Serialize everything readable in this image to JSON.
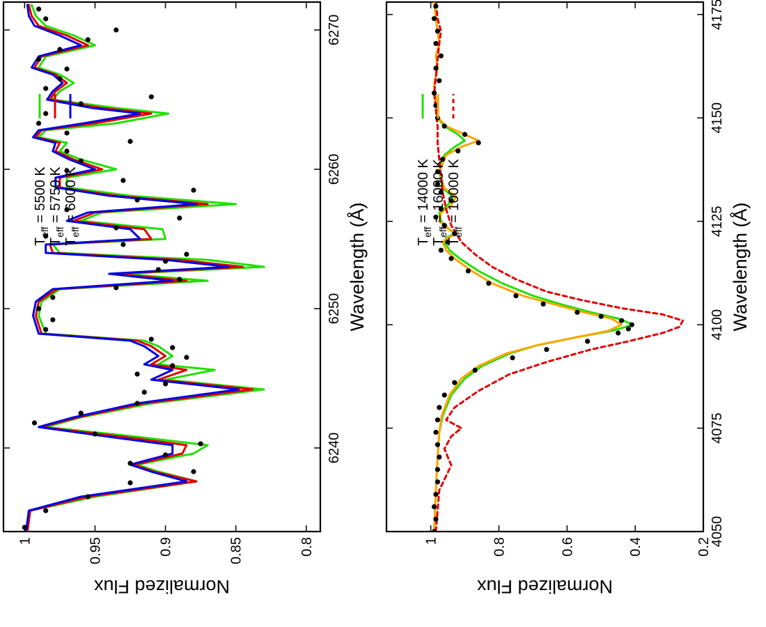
{
  "chart_data": [
    {
      "type": "line",
      "panel": "top",
      "xlabel": "Wavelength (Å)",
      "ylabel": "Normalized Flux",
      "xlim": [
        6234,
        6272
      ],
      "ylim": [
        0.79,
        1.015
      ],
      "xticks": [
        "6240",
        "6250",
        "6260",
        "6270"
      ],
      "yticks": [
        "1",
        "0.95",
        "0.9",
        "0.85",
        "0.8"
      ],
      "legend_position": "top-right",
      "observed": {
        "style": "black dots",
        "x": [
          6234.3,
          6235.5,
          6236.5,
          6237.5,
          6238.3,
          6238.9,
          6239.5,
          6240.3,
          6241.0,
          6241.8,
          6242.5,
          6243.2,
          6244.0,
          6244.6,
          6245.3,
          6245.9,
          6246.5,
          6247.2,
          6247.8,
          6248.5,
          6249.2,
          6250.0,
          6250.8,
          6251.5,
          6252.1,
          6252.8,
          6253.4,
          6253.9,
          6254.6,
          6255.2,
          6255.8,
          6256.5,
          6257.1,
          6257.8,
          6258.5,
          6259.2,
          6259.9,
          6260.6,
          6261.3,
          6262.0,
          6262.6,
          6263.3,
          6264.0,
          6264.7,
          6265.2,
          6265.8,
          6266.5,
          6267.2,
          6267.9,
          6268.6,
          6269.3,
          6270.0,
          6270.8,
          6271.5
        ],
        "y": [
          1.0,
          0.985,
          0.955,
          0.925,
          0.88,
          0.925,
          0.9,
          0.875,
          0.95,
          0.993,
          0.96,
          0.92,
          0.915,
          0.9,
          0.92,
          0.895,
          0.885,
          0.895,
          0.91,
          0.985,
          0.98,
          0.99,
          0.98,
          0.935,
          0.89,
          0.905,
          0.9,
          0.885,
          0.93,
          0.985,
          0.935,
          0.89,
          0.97,
          0.92,
          0.88,
          0.93,
          0.97,
          0.96,
          0.97,
          0.925,
          0.97,
          0.99,
          0.985,
          0.96,
          0.91,
          0.985,
          0.975,
          0.97,
          0.99,
          0.975,
          0.955,
          0.935,
          0.985,
          0.99
        ]
      },
      "series": [
        {
          "name": "5500 K",
          "color": "#22e000",
          "x": [
            6234.0,
            6235.5,
            6236.5,
            6237.6,
            6238.3,
            6238.8,
            6239.6,
            6240.2,
            6240.8,
            6241.5,
            6242.2,
            6243.2,
            6244.2,
            6244.9,
            6245.6,
            6246.0,
            6246.6,
            6247.3,
            6247.7,
            6248.2,
            6249.5,
            6250.5,
            6251.4,
            6252.0,
            6252.5,
            6253.0,
            6253.5,
            6254.0,
            6254.6,
            6255.0,
            6255.7,
            6256.3,
            6256.9,
            6257.5,
            6258.1,
            6258.7,
            6259.4,
            6260.0,
            6260.7,
            6261.3,
            6261.9,
            6262.3,
            6262.8,
            6263.3,
            6264.0,
            6264.4,
            6265.0,
            6265.6,
            6266.2,
            6266.8,
            6267.3,
            6268.1,
            6268.9,
            6269.6,
            6270.3,
            6271.0,
            6271.8
          ],
          "y": [
            0.998,
            0.996,
            0.95,
            0.878,
            0.905,
            0.92,
            0.88,
            0.87,
            0.92,
            0.985,
            0.96,
            0.91,
            0.83,
            0.9,
            0.865,
            0.905,
            0.895,
            0.905,
            0.915,
            0.985,
            0.99,
            0.988,
            0.975,
            0.87,
            0.93,
            0.83,
            0.87,
            0.975,
            0.98,
            0.9,
            0.902,
            0.96,
            0.945,
            0.85,
            0.925,
            0.97,
            0.97,
            0.935,
            0.96,
            0.975,
            0.97,
            0.99,
            0.985,
            0.935,
            0.898,
            0.935,
            0.98,
            0.975,
            0.965,
            0.975,
            0.99,
            0.985,
            0.95,
            0.965,
            0.985,
            0.992,
            0.995
          ]
        },
        {
          "name": "5750 K",
          "color": "#e00000",
          "x": [
            6234.0,
            6235.5,
            6236.5,
            6237.6,
            6238.3,
            6238.8,
            6239.6,
            6240.2,
            6240.8,
            6241.5,
            6242.2,
            6243.2,
            6244.2,
            6244.9,
            6245.6,
            6246.0,
            6246.6,
            6247.3,
            6247.7,
            6248.2,
            6249.5,
            6250.5,
            6251.4,
            6252.0,
            6252.5,
            6253.0,
            6253.5,
            6254.0,
            6254.6,
            6255.0,
            6255.7,
            6256.3,
            6256.9,
            6257.5,
            6258.1,
            6258.7,
            6259.4,
            6260.0,
            6260.7,
            6261.3,
            6261.9,
            6262.3,
            6262.8,
            6263.3,
            6264.0,
            6264.4,
            6265.0,
            6265.6,
            6266.2,
            6266.8,
            6267.3,
            6268.1,
            6268.9,
            6269.6,
            6270.3,
            6271.0,
            6271.8
          ],
          "y": [
            0.998,
            0.996,
            0.955,
            0.878,
            0.908,
            0.922,
            0.888,
            0.885,
            0.93,
            0.988,
            0.962,
            0.915,
            0.838,
            0.905,
            0.885,
            0.91,
            0.9,
            0.91,
            0.92,
            0.988,
            0.992,
            0.99,
            0.977,
            0.885,
            0.935,
            0.845,
            0.89,
            0.98,
            0.982,
            0.91,
            0.915,
            0.965,
            0.95,
            0.87,
            0.935,
            0.975,
            0.975,
            0.945,
            0.965,
            0.978,
            0.975,
            0.992,
            0.988,
            0.95,
            0.91,
            0.945,
            0.982,
            0.978,
            0.97,
            0.978,
            0.993,
            0.988,
            0.955,
            0.97,
            0.99,
            0.995,
            0.997
          ]
        },
        {
          "name": "6000 K",
          "color": "#0000e0",
          "x": [
            6234.0,
            6235.5,
            6236.5,
            6237.6,
            6238.3,
            6238.8,
            6239.6,
            6240.2,
            6240.8,
            6241.5,
            6242.2,
            6243.2,
            6244.2,
            6244.9,
            6245.6,
            6246.0,
            6246.6,
            6247.3,
            6247.7,
            6248.2,
            6249.5,
            6250.5,
            6251.4,
            6252.0,
            6252.5,
            6253.0,
            6253.5,
            6254.0,
            6254.6,
            6255.0,
            6255.7,
            6256.3,
            6256.9,
            6257.5,
            6258.1,
            6258.7,
            6259.4,
            6260.0,
            6260.7,
            6261.3,
            6261.9,
            6262.3,
            6262.8,
            6263.3,
            6264.0,
            6264.4,
            6265.0,
            6265.6,
            6266.2,
            6266.8,
            6267.3,
            6268.1,
            6268.9,
            6269.6,
            6270.3,
            6271.0,
            6271.8
          ],
          "y": [
            0.999,
            0.997,
            0.96,
            0.885,
            0.91,
            0.925,
            0.895,
            0.895,
            0.94,
            0.99,
            0.965,
            0.92,
            0.848,
            0.91,
            0.895,
            0.915,
            0.905,
            0.915,
            0.925,
            0.99,
            0.994,
            0.992,
            0.98,
            0.895,
            0.94,
            0.855,
            0.9,
            0.985,
            0.985,
            0.918,
            0.925,
            0.97,
            0.955,
            0.878,
            0.94,
            0.978,
            0.978,
            0.95,
            0.968,
            0.98,
            0.978,
            0.994,
            0.99,
            0.958,
            0.918,
            0.952,
            0.984,
            0.98,
            0.973,
            0.98,
            0.995,
            0.99,
            0.96,
            0.975,
            0.993,
            0.997,
            0.998
          ]
        }
      ]
    },
    {
      "type": "line",
      "panel": "bottom",
      "xlabel": "Wavelength (Å)",
      "ylabel": "Normalized Flux",
      "xlim": [
        4050,
        4178
      ],
      "ylim": [
        0.2,
        1.13
      ],
      "xticks": [
        "4050",
        "4075",
        "4100",
        "4125",
        "4150",
        "4175"
      ],
      "yticks": [
        "1",
        "0.8",
        "0.6",
        "0.4",
        "0.2"
      ],
      "legend_position": "top-right",
      "observed": {
        "style": "black dots",
        "x": [
          4050,
          4053,
          4056,
          4059,
          4062,
          4065,
          4068,
          4071,
          4074,
          4077,
          4080,
          4083,
          4086,
          4089,
          4092,
          4094,
          4096,
          4098,
          4099,
          4100,
          4101,
          4102,
          4103,
          4105,
          4107,
          4110,
          4113,
          4116,
          4118,
          4120,
          4122,
          4124,
          4126,
          4128,
          4130,
          4132,
          4134,
          4137,
          4140,
          4142,
          4144,
          4146,
          4148,
          4150,
          4153,
          4156,
          4159,
          4162,
          4165,
          4168,
          4171,
          4174,
          4177
        ],
        "y": [
          0.99,
          0.985,
          0.99,
          0.985,
          0.98,
          0.98,
          0.975,
          0.98,
          0.985,
          0.98,
          0.975,
          0.96,
          0.93,
          0.87,
          0.76,
          0.66,
          0.54,
          0.45,
          0.42,
          0.41,
          0.44,
          0.5,
          0.57,
          0.67,
          0.75,
          0.83,
          0.89,
          0.94,
          0.97,
          0.95,
          0.93,
          0.96,
          0.985,
          0.97,
          0.94,
          0.97,
          0.98,
          0.98,
          0.965,
          0.92,
          0.86,
          0.9,
          0.96,
          0.98,
          0.985,
          0.99,
          0.975,
          0.985,
          0.97,
          0.985,
          0.98,
          0.99,
          0.985
        ]
      },
      "series": [
        {
          "name": "14000 K",
          "color": "#22e000",
          "x": [
            4050,
            4060,
            4068,
            4074,
            4078,
            4083,
            4087,
            4090,
            4093,
            4095,
            4097,
            4098.5,
            4100,
            4101.5,
            4103,
            4105,
            4107,
            4110,
            4113,
            4116,
            4118,
            4120,
            4121,
            4122,
            4123,
            4125,
            4127,
            4129,
            4131,
            4133,
            4137,
            4141,
            4143,
            4144.5,
            4146,
            4148,
            4150,
            4154,
            4158,
            4162,
            4165,
            4168,
            4171,
            4174,
            4178
          ],
          "y": [
            0.99,
            0.985,
            0.98,
            0.975,
            0.965,
            0.94,
            0.9,
            0.85,
            0.77,
            0.69,
            0.57,
            0.47,
            0.405,
            0.45,
            0.53,
            0.62,
            0.7,
            0.79,
            0.86,
            0.915,
            0.945,
            0.96,
            0.955,
            0.93,
            0.945,
            0.97,
            0.975,
            0.95,
            0.935,
            0.965,
            0.975,
            0.96,
            0.93,
            0.9,
            0.92,
            0.96,
            0.98,
            0.985,
            0.99,
            0.98,
            0.985,
            0.975,
            0.98,
            0.985,
            0.99
          ]
        },
        {
          "name": "16000 K",
          "color": "#ffa500",
          "x": [
            4050,
            4060,
            4068,
            4074,
            4078,
            4083,
            4087,
            4090,
            4093,
            4095,
            4097,
            4098.5,
            4100,
            4101.5,
            4103,
            4105,
            4107,
            4110,
            4113,
            4116,
            4118,
            4120,
            4121,
            4122,
            4123,
            4125,
            4127,
            4129,
            4131,
            4133,
            4137,
            4141,
            4143,
            4144.5,
            4146,
            4148,
            4150,
            4154,
            4158,
            4162,
            4165,
            4168,
            4171,
            4174,
            4178
          ],
          "y": [
            0.99,
            0.985,
            0.98,
            0.975,
            0.968,
            0.945,
            0.91,
            0.86,
            0.78,
            0.69,
            0.57,
            0.48,
            0.44,
            0.47,
            0.55,
            0.64,
            0.73,
            0.82,
            0.88,
            0.93,
            0.955,
            0.965,
            0.95,
            0.925,
            0.945,
            0.975,
            0.97,
            0.94,
            0.925,
            0.96,
            0.975,
            0.955,
            0.91,
            0.86,
            0.9,
            0.955,
            0.978,
            0.985,
            0.99,
            0.98,
            0.985,
            0.975,
            0.98,
            0.985,
            0.99
          ]
        },
        {
          "name": "10000 K",
          "color": "#e00000",
          "dashed": true,
          "x": [
            4050,
            4060,
            4066,
            4070,
            4073,
            4075,
            4077,
            4080,
            4084,
            4088,
            4091,
            4094,
            4096,
            4098,
            4099.5,
            4101,
            4102.5,
            4104,
            4106,
            4108,
            4111,
            4114,
            4117,
            4120,
            4124,
            4128,
            4132,
            4136,
            4140,
            4144,
            4148,
            4152,
            4156,
            4160,
            4164,
            4168,
            4171,
            4174,
            4178
          ],
          "y": [
            0.985,
            0.975,
            0.94,
            0.96,
            0.94,
            0.91,
            0.955,
            0.93,
            0.86,
            0.77,
            0.66,
            0.53,
            0.42,
            0.32,
            0.27,
            0.26,
            0.32,
            0.44,
            0.56,
            0.66,
            0.75,
            0.82,
            0.87,
            0.91,
            0.94,
            0.955,
            0.965,
            0.97,
            0.975,
            0.98,
            0.98,
            0.985,
            0.99,
            0.985,
            0.98,
            0.975,
            0.97,
            0.98,
            0.985
          ]
        }
      ]
    }
  ],
  "legend_prefix": "T",
  "legend_subscript": "eff"
}
